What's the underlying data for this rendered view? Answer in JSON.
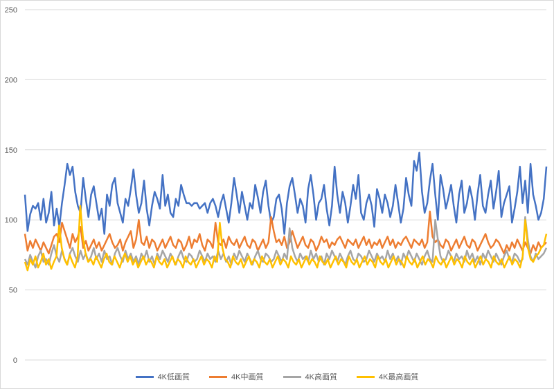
{
  "chart_data": {
    "type": "line",
    "ylim": [
      0,
      250
    ],
    "yticks": [
      0,
      50,
      100,
      150,
      200,
      250
    ],
    "grid": "horizontal",
    "legend_position": "bottom",
    "series": [
      {
        "name": "4K低画質",
        "color": "#4472C4",
        "values": [
          118,
          92,
          104,
          110,
          108,
          112,
          100,
          115,
          98,
          105,
          120,
          96,
          108,
          95,
          112,
          125,
          140,
          132,
          138,
          120,
          110,
          105,
          130,
          115,
          102,
          118,
          124,
          112,
          100,
          108,
          90,
          118,
          110,
          125,
          130,
          112,
          105,
          98,
          115,
          110,
          122,
          136,
          118,
          105,
          112,
          128,
          108,
          96,
          110,
          120,
          115,
          108,
          132,
          110,
          118,
          105,
          102,
          115,
          110,
          125,
          118,
          112,
          112,
          110,
          112,
          112,
          108,
          110,
          112,
          105,
          112,
          115,
          110,
          102,
          112,
          118,
          108,
          98,
          112,
          130,
          118,
          105,
          120,
          110,
          100,
          112,
          108,
          125,
          116,
          105,
          120,
          128,
          110,
          98,
          102,
          115,
          118,
          108,
          90,
          112,
          124,
          130,
          118,
          105,
          115,
          110,
          98,
          122,
          132,
          118,
          100,
          112,
          115,
          125,
          108,
          96,
          110,
          138,
          118,
          105,
          120,
          112,
          98,
          110,
          125,
          115,
          132,
          105,
          100,
          112,
          118,
          110,
          95,
          122,
          115,
          105,
          118,
          112,
          102,
          110,
          125,
          112,
          98,
          108,
          130,
          118,
          110,
          142,
          135,
          148,
          120,
          105,
          112,
          128,
          140,
          118,
          100,
          132,
          122,
          108,
          116,
          125,
          110,
          98,
          118,
          128,
          105,
          112,
          124,
          115,
          100,
          118,
          132,
          110,
          105,
          118,
          128,
          108,
          120,
          135,
          102,
          112,
          118,
          124,
          98,
          108,
          120,
          138,
          112,
          128,
          105,
          140,
          118,
          110,
          100,
          105,
          115,
          138
        ],
        "note": "values approximated"
      },
      {
        "name": "4K中画質",
        "color": "#ED7D31",
        "values": [
          90,
          78,
          85,
          80,
          86,
          82,
          78,
          84,
          80,
          76,
          82,
          88,
          90,
          84,
          98,
          92,
          86,
          80,
          90,
          84,
          88,
          95,
          80,
          85,
          78,
          82,
          86,
          80,
          84,
          78,
          82,
          86,
          90,
          84,
          80,
          82,
          86,
          78,
          84,
          88,
          92,
          80,
          86,
          100,
          84,
          82,
          88,
          80,
          86,
          84,
          78,
          82,
          86,
          80,
          84,
          88,
          82,
          80,
          86,
          84,
          78,
          82,
          88,
          80,
          86,
          84,
          90,
          82,
          78,
          86,
          84,
          80,
          98,
          84,
          82,
          86,
          80,
          88,
          84,
          82,
          86,
          80,
          84,
          88,
          82,
          80,
          86,
          84,
          78,
          82,
          86,
          80,
          84,
          102,
          92,
          84,
          86,
          82,
          88,
          80,
          84,
          92,
          86,
          80,
          84,
          88,
          82,
          80,
          86,
          84,
          78,
          82,
          88,
          84,
          86,
          80,
          84,
          82,
          86,
          88,
          84,
          80,
          86,
          84,
          82,
          86,
          80,
          84,
          88,
          82,
          86,
          80,
          84,
          82,
          86,
          80,
          84,
          88,
          82,
          86,
          80,
          84,
          82,
          86,
          88,
          84,
          80,
          86,
          84,
          82,
          86,
          80,
          84,
          106,
          88,
          84,
          86,
          82,
          80,
          86,
          84,
          78,
          82,
          86,
          80,
          84,
          88,
          82,
          80,
          86,
          84,
          78,
          82,
          86,
          90,
          84,
          80,
          82,
          86,
          84,
          80,
          76,
          82,
          78,
          84,
          80,
          86,
          82,
          78,
          84,
          80,
          76,
          82,
          78,
          84,
          80,
          82,
          84
        ],
        "note": "values approximated"
      },
      {
        "name": "4K高画質",
        "color": "#A5A5A5",
        "values": [
          72,
          68,
          75,
          70,
          66,
          74,
          78,
          70,
          72,
          68,
          76,
          82,
          74,
          70,
          78,
          72,
          68,
          76,
          80,
          74,
          70,
          78,
          72,
          76,
          70,
          74,
          80,
          72,
          76,
          70,
          78,
          72,
          74,
          68,
          76,
          80,
          74,
          70,
          78,
          72,
          76,
          70,
          74,
          68,
          76,
          72,
          78,
          70,
          74,
          68,
          76,
          72,
          78,
          74,
          70,
          76,
          72,
          68,
          74,
          78,
          72,
          70,
          76,
          74,
          70,
          72,
          78,
          74,
          70,
          76,
          72,
          74,
          70,
          78,
          72,
          76,
          70,
          74,
          68,
          76,
          72,
          78,
          74,
          70,
          76,
          72,
          68,
          74,
          78,
          72,
          70,
          76,
          74,
          70,
          72,
          78,
          74,
          70,
          76,
          72,
          94,
          80,
          74,
          70,
          76,
          72,
          74,
          70,
          78,
          72,
          76,
          70,
          74,
          68,
          76,
          72,
          78,
          74,
          70,
          76,
          72,
          68,
          74,
          78,
          72,
          70,
          76,
          74,
          70,
          72,
          78,
          74,
          70,
          76,
          72,
          74,
          70,
          78,
          72,
          76,
          70,
          74,
          68,
          76,
          72,
          78,
          74,
          70,
          76,
          72,
          68,
          74,
          78,
          72,
          70,
          100,
          86,
          74,
          70,
          72,
          78,
          74,
          70,
          76,
          72,
          74,
          70,
          78,
          72,
          76,
          70,
          74,
          68,
          76,
          72,
          78,
          74,
          70,
          76,
          72,
          68,
          74,
          78,
          72,
          70,
          76,
          74,
          70,
          72,
          102,
          86,
          74,
          70,
          76,
          72,
          74,
          76,
          80
        ],
        "note": "values approximated"
      },
      {
        "name": "4K最高画質",
        "color": "#FFC000",
        "values": [
          70,
          64,
          72,
          68,
          74,
          66,
          70,
          76,
          68,
          72,
          65,
          70,
          74,
          96,
          80,
          72,
          68,
          75,
          70,
          66,
          74,
          110,
          88,
          76,
          70,
          72,
          68,
          74,
          70,
          66,
          72,
          76,
          70,
          68,
          74,
          70,
          66,
          72,
          76,
          70,
          74,
          68,
          72,
          66,
          70,
          74,
          68,
          72,
          70,
          66,
          74,
          70,
          68,
          72,
          66,
          70,
          74,
          68,
          72,
          70,
          66,
          74,
          70,
          68,
          72,
          66,
          70,
          74,
          68,
          72,
          70,
          66,
          74,
          70,
          98,
          80,
          72,
          70,
          66,
          74,
          70,
          68,
          72,
          66,
          70,
          74,
          68,
          72,
          70,
          66,
          74,
          70,
          68,
          72,
          66,
          70,
          74,
          68,
          72,
          70,
          66,
          74,
          70,
          68,
          72,
          66,
          70,
          74,
          68,
          72,
          70,
          66,
          74,
          70,
          68,
          72,
          66,
          70,
          74,
          68,
          72,
          70,
          66,
          74,
          70,
          68,
          72,
          66,
          70,
          74,
          68,
          72,
          70,
          66,
          74,
          70,
          68,
          72,
          66,
          70,
          74,
          68,
          72,
          70,
          66,
          74,
          70,
          68,
          72,
          66,
          70,
          74,
          68,
          72,
          70,
          66,
          74,
          70,
          68,
          72,
          66,
          70,
          74,
          68,
          72,
          70,
          66,
          74,
          70,
          68,
          72,
          66,
          70,
          74,
          68,
          72,
          70,
          66,
          74,
          70,
          68,
          72,
          66,
          70,
          74,
          68,
          72,
          70,
          66,
          74,
          100,
          80,
          72,
          70,
          74,
          76,
          80,
          82,
          90
        ],
        "note": "values approximated"
      }
    ]
  }
}
